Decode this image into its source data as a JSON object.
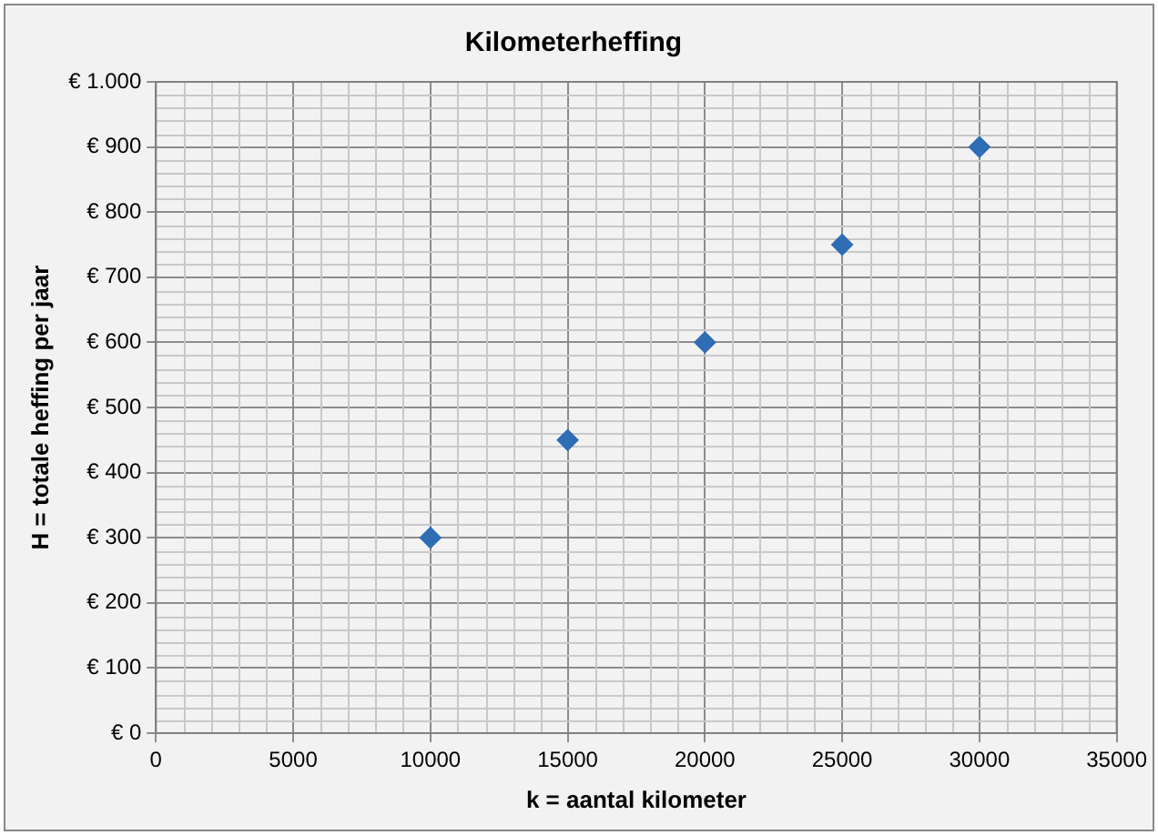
{
  "chart_data": {
    "type": "scatter",
    "title": "Kilometerheffing",
    "xlabel": "k = aantal kilometer",
    "ylabel": "H = totale heffing per jaar",
    "x": [
      10000,
      15000,
      20000,
      25000,
      30000
    ],
    "series": [
      {
        "color": "#2f6db5",
        "values": [
          300,
          450,
          600,
          750,
          900
        ]
      }
    ],
    "xlim": [
      0,
      35000
    ],
    "xticks": [
      0,
      5000,
      10000,
      15000,
      20000,
      25000,
      30000,
      35000
    ],
    "ylim": [
      0,
      1000
    ],
    "yticks": [
      {
        "value": 0,
        "label": "€ 0"
      },
      {
        "value": 100,
        "label": "€ 100"
      },
      {
        "value": 200,
        "label": "€ 200"
      },
      {
        "value": 300,
        "label": "€ 300"
      },
      {
        "value": 400,
        "label": "€ 400"
      },
      {
        "value": 500,
        "label": "€ 500"
      },
      {
        "value": 600,
        "label": "€ 600"
      },
      {
        "value": 700,
        "label": "€ 700"
      },
      {
        "value": 800,
        "label": "€ 800"
      },
      {
        "value": 900,
        "label": "€ 900"
      },
      {
        "value": 1000,
        "label": "€ 1.000"
      }
    ],
    "grid": true,
    "legend": false,
    "marker": "diamond"
  }
}
